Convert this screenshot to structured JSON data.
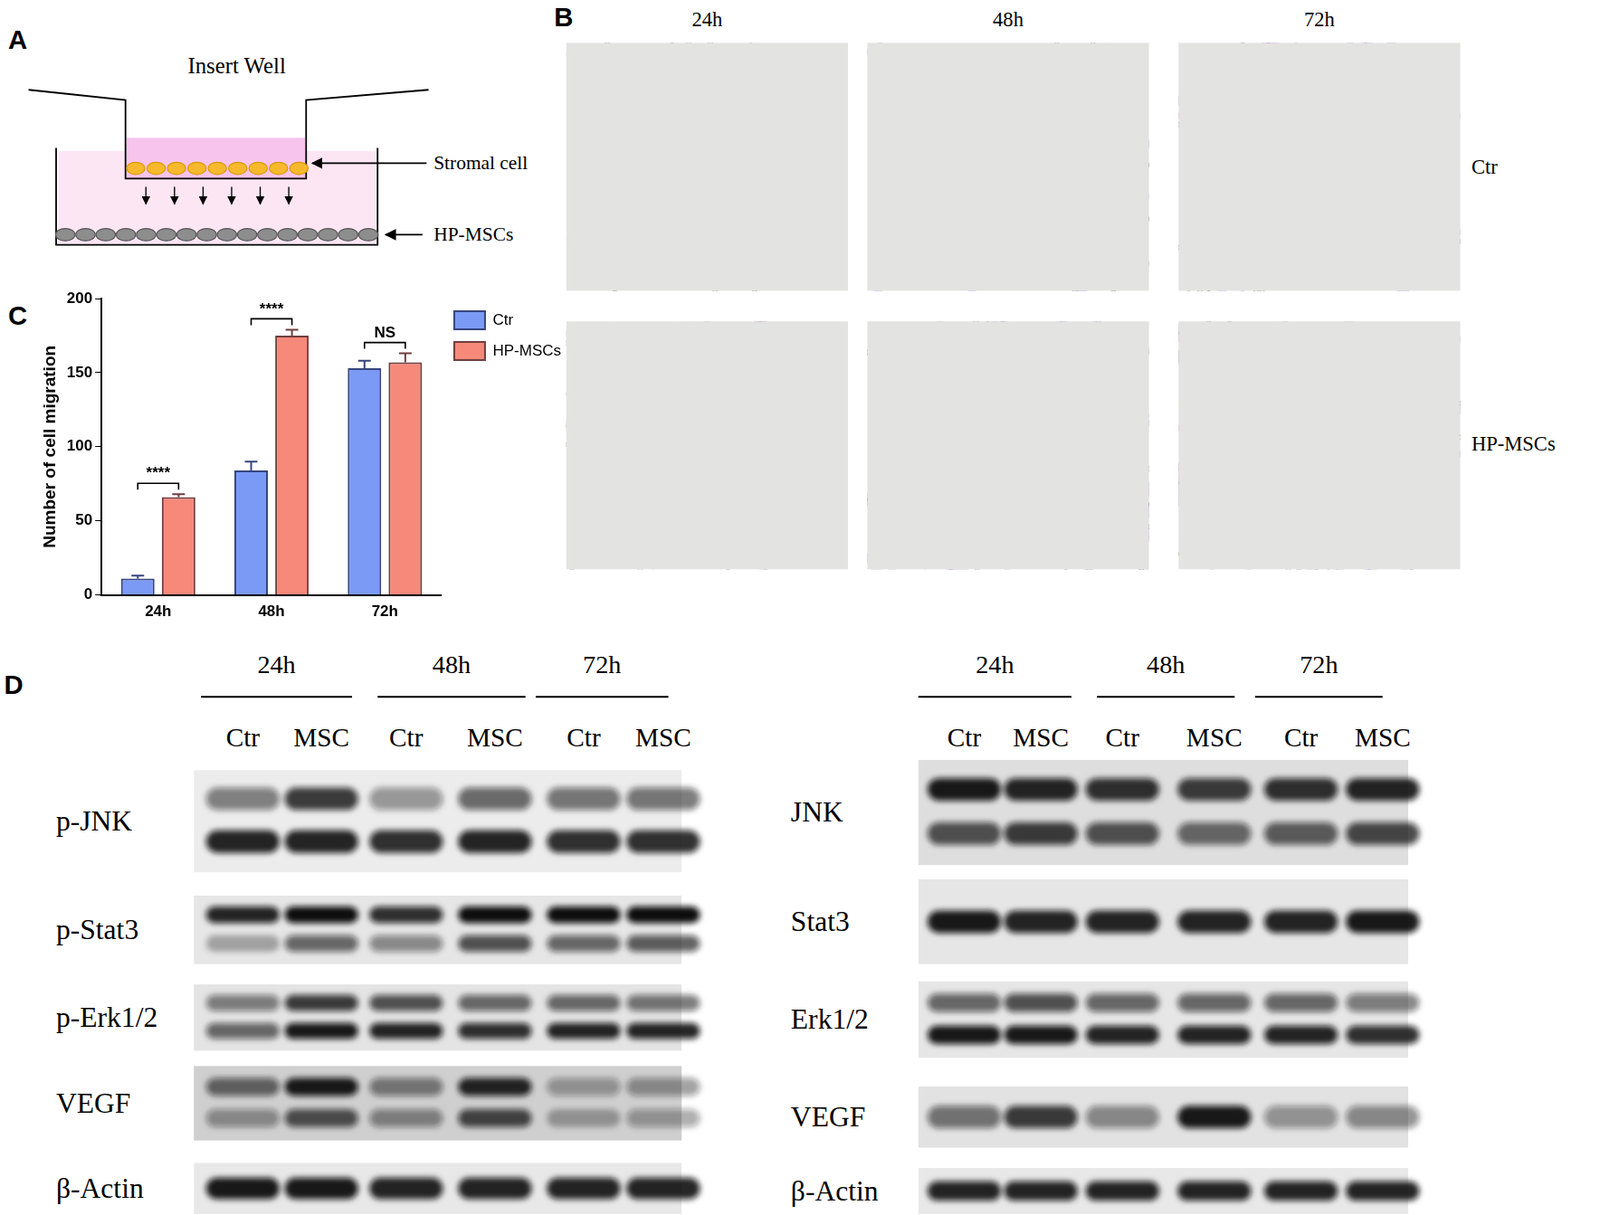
{
  "panels": {
    "A": {
      "label": "A",
      "title": "Insert Well",
      "upper_layer": "Stromal cell",
      "lower_layer": "HP-MSCs"
    },
    "B": {
      "label": "B",
      "columns": [
        "24h",
        "48h",
        "72h"
      ],
      "rows": [
        "Ctr",
        "HP-MSCs"
      ]
    },
    "D": {
      "label": "D",
      "blots": [
        {
          "times": [
            "24h",
            "48h",
            "72h"
          ],
          "lanes": [
            "Ctr",
            "MSC",
            "Ctr",
            "MSC",
            "Ctr",
            "MSC"
          ],
          "rows": [
            {
              "protein": "p-JNK",
              "bands": [
                [
                  0.5,
                  0.8,
                  0.4,
                  0.6,
                  0.55,
                  0.55
                ],
                [
                  0.9,
                  0.9,
                  0.85,
                  0.9,
                  0.85,
                  0.85
                ]
              ]
            },
            {
              "protein": "p-Stat3",
              "bands": [
                [
                  0.9,
                  1,
                  0.85,
                  1,
                  1,
                  1
                ],
                [
                  0.3,
                  0.6,
                  0.45,
                  0.7,
                  0.6,
                  0.65
                ]
              ]
            },
            {
              "protein": "p-Erk1/2",
              "bands": [
                [
                  0.5,
                  0.8,
                  0.7,
                  0.6,
                  0.6,
                  0.55
                ],
                [
                  0.6,
                  0.95,
                  0.9,
                  0.85,
                  0.9,
                  0.9
                ]
              ]
            },
            {
              "protein": "VEGF",
              "bands": [
                [
                  0.6,
                  0.95,
                  0.5,
                  0.9,
                  0.35,
                  0.4
                ],
                [
                  0.4,
                  0.7,
                  0.45,
                  0.75,
                  0.3,
                  0.35
                ]
              ]
            },
            {
              "protein": "β-Actin",
              "bands": [
                [
                  0.95,
                  0.95,
                  0.9,
                  0.9,
                  0.9,
                  0.9
                ]
              ]
            }
          ]
        },
        {
          "times": [
            "24h",
            "48h",
            "72h"
          ],
          "lanes": [
            "Ctr",
            "MSC",
            "Ctr",
            "MSC",
            "Ctr",
            "MSC"
          ],
          "rows": [
            {
              "protein": "JNK",
              "bands": [
                [
                  0.95,
                  0.9,
                  0.85,
                  0.8,
                  0.85,
                  0.9
                ],
                [
                  0.7,
                  0.8,
                  0.7,
                  0.6,
                  0.65,
                  0.75
                ]
              ]
            },
            {
              "protein": "Stat3",
              "bands": [
                [
                  0.95,
                  0.9,
                  0.9,
                  0.9,
                  0.9,
                  0.95
                ]
              ]
            },
            {
              "protein": "Erk1/2",
              "bands": [
                [
                  0.6,
                  0.7,
                  0.6,
                  0.6,
                  0.6,
                  0.5
                ],
                [
                  0.95,
                  0.95,
                  0.9,
                  0.9,
                  0.9,
                  0.85
                ]
              ]
            },
            {
              "protein": "VEGF",
              "bands": [
                [
                  0.55,
                  0.8,
                  0.45,
                  0.95,
                  0.4,
                  0.45
                ]
              ]
            },
            {
              "protein": "β-Actin",
              "bands": [
                [
                  0.9,
                  0.9,
                  0.9,
                  0.9,
                  0.9,
                  0.9
                ]
              ]
            }
          ]
        }
      ]
    }
  },
  "chart_data": {
    "label": "C",
    "type": "bar",
    "categories": [
      "24h",
      "48h",
      "72h"
    ],
    "series": [
      {
        "name": "Ctr",
        "color": "#7b9af5",
        "values": [
          11,
          84,
          153
        ],
        "errors": [
          2,
          6,
          5
        ]
      },
      {
        "name": "HP-MSCs",
        "color": "#f6897a",
        "values": [
          66,
          175,
          157
        ],
        "errors": [
          2,
          4,
          6
        ]
      }
    ],
    "y_label": "Number of cell migration",
    "ylim": [
      0,
      200
    ],
    "yticks": [
      0,
      50,
      100,
      150,
      200
    ],
    "significance": [
      "****",
      "****",
      "NS"
    ],
    "grid": false,
    "legend": "right"
  }
}
